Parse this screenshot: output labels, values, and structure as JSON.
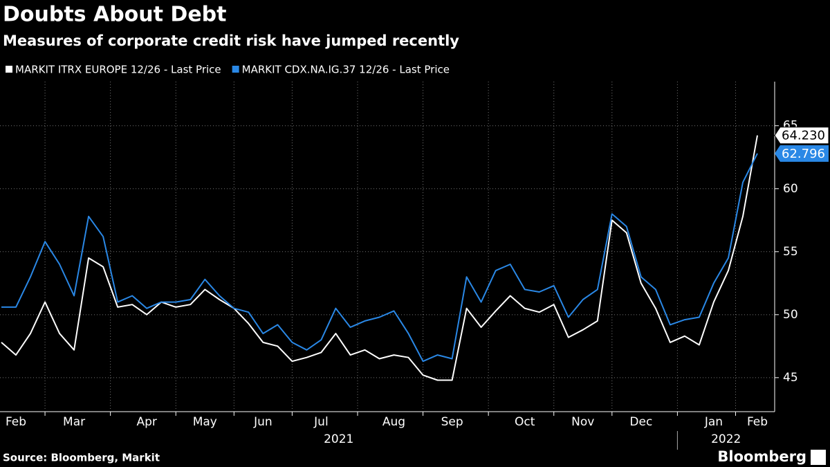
{
  "chart_data": {
    "type": "line",
    "title": "Doubts About Debt",
    "subtitle": "Measures of corporate credit risk have jumped recently",
    "source": "Source: Bloomberg, Markit",
    "brand": "Bloomberg",
    "categories": [
      null,
      "Feb",
      null,
      null,
      null,
      "Mar",
      null,
      null,
      null,
      null,
      "Apr",
      null,
      null,
      null,
      "May",
      null,
      null,
      null,
      "Jun",
      null,
      null,
      null,
      "Jul",
      null,
      null,
      null,
      null,
      "Aug",
      null,
      null,
      null,
      "Sep",
      null,
      null,
      null,
      null,
      "Oct",
      null,
      null,
      null,
      "Nov",
      null,
      null,
      null,
      "Dec",
      null,
      null,
      null,
      null,
      "Jan",
      null,
      null,
      "Feb"
    ],
    "x_groups": [
      {
        "label": "2021"
      },
      {
        "label": "2022",
        "starts_at": "Jan"
      }
    ],
    "series": [
      {
        "name": "MARKIT ITRX EUROPE 12/26 - Last Price",
        "color": "#ffffff",
        "values": [
          47.8,
          46.8,
          48.5,
          51.0,
          48.5,
          47.2,
          54.5,
          53.8,
          50.6,
          50.8,
          50.0,
          51.0,
          50.6,
          50.8,
          52.0,
          51.2,
          50.5,
          49.3,
          47.8,
          47.5,
          46.3,
          46.6,
          47.0,
          48.5,
          46.8,
          47.2,
          46.5,
          46.8,
          46.6,
          45.2,
          44.8,
          44.8,
          50.5,
          49.0,
          50.3,
          51.5,
          50.5,
          50.2,
          50.8,
          48.2,
          48.8,
          49.5,
          57.5,
          56.5,
          52.5,
          50.5,
          47.8,
          48.3,
          47.6,
          51.0,
          53.5,
          57.8,
          64.23
        ],
        "value_labels": [
          null,
          null,
          null,
          null,
          null,
          null,
          null,
          null,
          null,
          null,
          null,
          null,
          null,
          null,
          null,
          null,
          null,
          null,
          null,
          null,
          null,
          null,
          null,
          null,
          null,
          null,
          null,
          null,
          null,
          null,
          null,
          null,
          null,
          null,
          null,
          null,
          null,
          null,
          null,
          null,
          null,
          null,
          null,
          null,
          null,
          null,
          null,
          null,
          null,
          null,
          null,
          null,
          "64.230"
        ]
      },
      {
        "name": "MARKIT CDX.NA.IG.37 12/26 - Last Price",
        "color": "#2a88e6",
        "values": [
          50.6,
          50.6,
          53.0,
          55.8,
          54.0,
          51.5,
          57.8,
          56.2,
          51.0,
          51.5,
          50.5,
          51.0,
          51.0,
          51.2,
          52.8,
          51.5,
          50.5,
          50.2,
          48.5,
          49.2,
          47.8,
          47.2,
          48.0,
          50.5,
          49.0,
          49.5,
          49.8,
          50.3,
          48.5,
          46.3,
          46.8,
          46.5,
          53.0,
          51.0,
          53.5,
          54.0,
          52.0,
          51.8,
          52.3,
          49.8,
          51.2,
          52.0,
          58.0,
          57.0,
          53.0,
          52.0,
          49.2,
          49.6,
          49.8,
          52.5,
          54.5,
          60.5,
          62.796
        ],
        "value_labels": [
          null,
          null,
          null,
          null,
          null,
          null,
          null,
          null,
          null,
          null,
          null,
          null,
          null,
          null,
          null,
          null,
          null,
          null,
          null,
          null,
          null,
          null,
          null,
          null,
          null,
          null,
          null,
          null,
          null,
          null,
          null,
          null,
          null,
          null,
          null,
          null,
          null,
          null,
          null,
          null,
          null,
          null,
          null,
          null,
          null,
          null,
          null,
          null,
          null,
          null,
          null,
          null,
          "62.796"
        ]
      }
    ],
    "ylim": [
      42.3,
      68.5
    ],
    "yticks": [
      45,
      50,
      55,
      60,
      65
    ],
    "grid": true,
    "y_axis_side": "right"
  }
}
